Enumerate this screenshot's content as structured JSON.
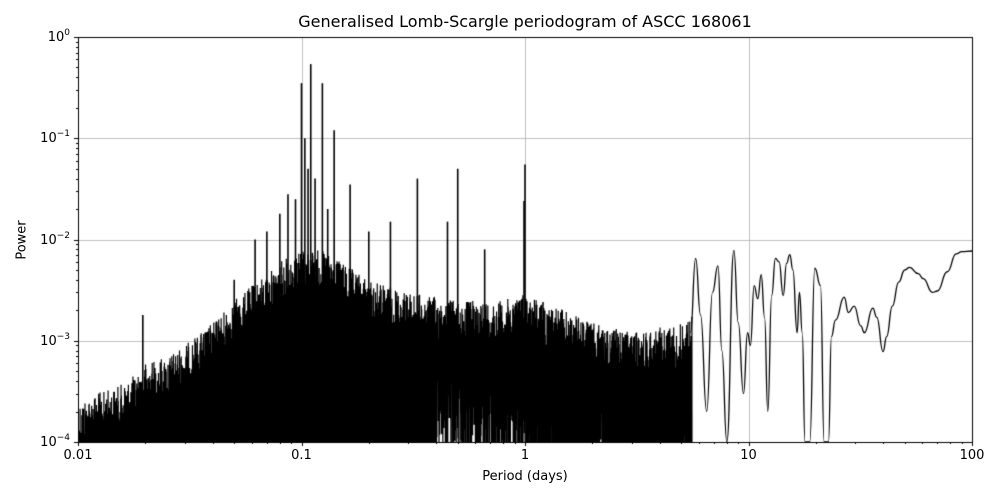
{
  "chart_data": {
    "type": "line",
    "title": "Generalised Lomb-Scargle periodogram of ASCC 168061",
    "xlabel": "Period (days)",
    "ylabel": "Power",
    "xscale": "log",
    "yscale": "log",
    "xlim": [
      0.01,
      100
    ],
    "ylim": [
      0.0001,
      1
    ],
    "grid": true,
    "line_color": "#000000",
    "grid_color": "#b0b0b0",
    "x_ticks": [
      {
        "value": 0.01,
        "label": "0.01"
      },
      {
        "value": 0.1,
        "label": "0.1"
      },
      {
        "value": 1,
        "label": "1"
      },
      {
        "value": 10,
        "label": "10"
      },
      {
        "value": 100,
        "label": "100"
      }
    ],
    "y_ticks": [
      {
        "value": 1,
        "base": "10",
        "exp": "0"
      },
      {
        "value": 0.1,
        "base": "10",
        "exp": "−1"
      },
      {
        "value": 0.01,
        "base": "10",
        "exp": "−2"
      },
      {
        "value": 0.001,
        "base": "10",
        "exp": "−3"
      },
      {
        "value": 0.0001,
        "base": "10",
        "exp": "−4"
      }
    ],
    "noise_envelope": {
      "description": "upper envelope of dense noisy periodogram (period, power)",
      "points": [
        [
          0.01,
          0.00025
        ],
        [
          0.012,
          0.0003
        ],
        [
          0.015,
          0.00035
        ],
        [
          0.019,
          0.0005
        ],
        [
          0.02,
          0.0006
        ],
        [
          0.025,
          0.0007
        ],
        [
          0.03,
          0.0009
        ],
        [
          0.04,
          0.0015
        ],
        [
          0.05,
          0.0025
        ],
        [
          0.06,
          0.0035
        ],
        [
          0.07,
          0.0045
        ],
        [
          0.08,
          0.006
        ],
        [
          0.1,
          0.008
        ],
        [
          0.12,
          0.008
        ],
        [
          0.15,
          0.006
        ],
        [
          0.2,
          0.004
        ],
        [
          0.3,
          0.003
        ],
        [
          0.5,
          0.0025
        ],
        [
          0.8,
          0.0025
        ],
        [
          1,
          0.003
        ],
        [
          1.5,
          0.002
        ],
        [
          2,
          0.0015
        ],
        [
          3,
          0.0012
        ],
        [
          5,
          0.0015
        ],
        [
          6,
          0.002
        ]
      ]
    },
    "prominent_peaks": [
      {
        "period": 0.0195,
        "power": 0.0018
      },
      {
        "period": 0.05,
        "power": 0.004
      },
      {
        "period": 0.062,
        "power": 0.01
      },
      {
        "period": 0.07,
        "power": 0.012
      },
      {
        "period": 0.08,
        "power": 0.018
      },
      {
        "period": 0.087,
        "power": 0.028
      },
      {
        "period": 0.094,
        "power": 0.025
      },
      {
        "period": 0.1,
        "power": 0.35
      },
      {
        "period": 0.1035,
        "power": 0.1
      },
      {
        "period": 0.107,
        "power": 0.05
      },
      {
        "period": 0.11,
        "power": 0.54
      },
      {
        "period": 0.115,
        "power": 0.04
      },
      {
        "period": 0.124,
        "power": 0.35
      },
      {
        "period": 0.131,
        "power": 0.02
      },
      {
        "period": 0.14,
        "power": 0.12
      },
      {
        "period": 0.165,
        "power": 0.035
      },
      {
        "period": 0.2,
        "power": 0.012
      },
      {
        "period": 0.25,
        "power": 0.015
      },
      {
        "period": 0.33,
        "power": 0.04
      },
      {
        "period": 0.45,
        "power": 0.015
      },
      {
        "period": 0.5,
        "power": 0.05
      },
      {
        "period": 0.66,
        "power": 0.008
      },
      {
        "period": 0.99,
        "power": 0.024
      },
      {
        "period": 1.0,
        "power": 0.055
      }
    ],
    "smooth_tail": {
      "description": "smooth long-period part of the curve (period, power)",
      "points": [
        [
          5.5,
          0.0012
        ],
        [
          5.8,
          0.0065
        ],
        [
          6.1,
          0.0018
        ],
        [
          6.5,
          0.0002
        ],
        [
          6.9,
          0.003
        ],
        [
          7.3,
          0.0055
        ],
        [
          7.6,
          0.0008
        ],
        [
          8.0,
          0.0001
        ],
        [
          8.6,
          0.0078
        ],
        [
          9.0,
          0.0015
        ],
        [
          9.5,
          0.0003
        ],
        [
          9.9,
          0.0012
        ],
        [
          10.2,
          0.0009
        ],
        [
          10.6,
          0.0035
        ],
        [
          11.0,
          0.0026
        ],
        [
          11.4,
          0.0045
        ],
        [
          11.8,
          0.0017
        ],
        [
          12.2,
          0.0002
        ],
        [
          12.7,
          0.0028
        ],
        [
          13.2,
          0.0065
        ],
        [
          13.7,
          0.006
        ],
        [
          14.3,
          0.0028
        ],
        [
          14.8,
          0.0058
        ],
        [
          15.3,
          0.0071
        ],
        [
          15.8,
          0.005
        ],
        [
          16.5,
          0.0012
        ],
        [
          16.9,
          0.003
        ],
        [
          17.4,
          0.0012
        ],
        [
          17.9,
          0.0001
        ],
        [
          18.8,
          0.0001
        ],
        [
          19.8,
          0.0052
        ],
        [
          21.0,
          0.0035
        ],
        [
          21.8,
          0.0001
        ],
        [
          22.8,
          0.0001
        ],
        [
          23.5,
          0.0011
        ],
        [
          24.5,
          0.0016
        ],
        [
          26.8,
          0.0027
        ],
        [
          28.0,
          0.0019
        ],
        [
          29.7,
          0.0022
        ],
        [
          31.8,
          0.0014
        ],
        [
          33.0,
          0.0012
        ],
        [
          36.0,
          0.0021
        ],
        [
          37.5,
          0.0017
        ],
        [
          40.0,
          0.00078
        ],
        [
          41.5,
          0.0011
        ],
        [
          44.0,
          0.0022
        ],
        [
          47.0,
          0.0038
        ],
        [
          50.0,
          0.005
        ],
        [
          52.5,
          0.0053
        ],
        [
          57.5,
          0.0046
        ],
        [
          60.5,
          0.0041
        ],
        [
          66.5,
          0.003
        ],
        [
          70.0,
          0.0031
        ],
        [
          77.5,
          0.0048
        ],
        [
          85.0,
          0.0072
        ],
        [
          90.0,
          0.0076
        ],
        [
          100.0,
          0.0077
        ]
      ]
    }
  }
}
